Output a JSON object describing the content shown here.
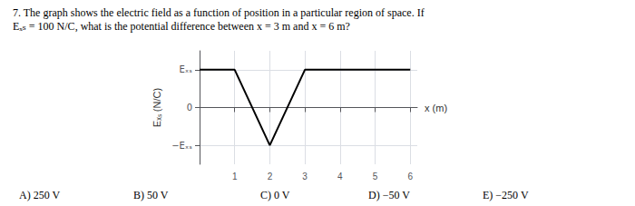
{
  "chart_data": {
    "type": "line",
    "title": "7. The graph shows the electric field as a function of position in a particular region of space. If",
    "subtitle": "Eₓₛ = 100 N/C, what is the potential difference between x = 3 m and x = 6 m?",
    "x": [
      0,
      1,
      2,
      3,
      5,
      6
    ],
    "values": [
      1,
      1,
      -1,
      1,
      1,
      1
    ],
    "color": "#000000",
    "xlabel": "x (m)",
    "ylabel": "Eₓₛ (N/C)",
    "xlim": [
      0,
      6.2
    ],
    "xticks": [
      1,
      2,
      3,
      4,
      5,
      6
    ],
    "ylim": [
      -1.5,
      1.5
    ],
    "yticks": [
      {
        "value": -1,
        "label": "−Eₓₛ"
      },
      0,
      {
        "value": 1,
        "label": "Eₓₛ"
      }
    ],
    "grid": true,
    "annotations": [
      "A) 250 V",
      "B) 50 V",
      "C) 0 V",
      "D) −50 V",
      "E) −250 V"
    ]
  }
}
